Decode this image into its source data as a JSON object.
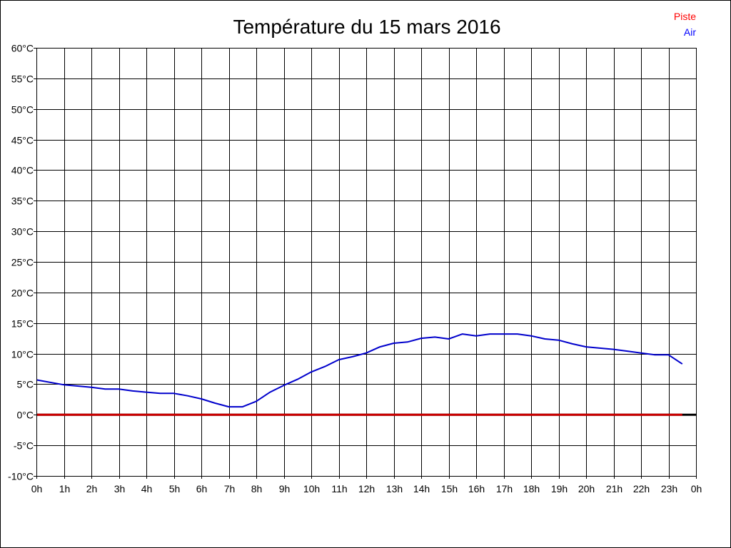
{
  "chart_data": {
    "type": "line",
    "title": "Température du 15 mars 2016",
    "legend": {
      "position": "top-right",
      "entries": [
        {
          "name": "Piste",
          "color": "#ff0000"
        },
        {
          "name": "Air",
          "color": "#0000ff"
        }
      ]
    },
    "x_unit": "h",
    "xlim": [
      0,
      24
    ],
    "x_tick_labels": [
      "0h",
      "1h",
      "2h",
      "3h",
      "4h",
      "5h",
      "6h",
      "7h",
      "8h",
      "9h",
      "10h",
      "11h",
      "12h",
      "13h",
      "14h",
      "15h",
      "16h",
      "17h",
      "18h",
      "19h",
      "20h",
      "21h",
      "22h",
      "23h",
      "0h"
    ],
    "ylim": [
      -10,
      60
    ],
    "y_tick_values": [
      60,
      55,
      50,
      45,
      40,
      35,
      30,
      25,
      20,
      15,
      10,
      5,
      0,
      -5,
      -10
    ],
    "y_tick_labels": [
      "60°C",
      "55°C",
      "50°C",
      "45°C",
      "40°C",
      "35°C",
      "30°C",
      "25°C",
      "20°C",
      "15°C",
      "10°C",
      "5°C",
      "0°C",
      "-5°C",
      "-10°C"
    ],
    "grid": true,
    "series": [
      {
        "name": "Piste",
        "color": "#cc0000",
        "x": [
          0,
          23.5
        ],
        "y": [
          0,
          0
        ]
      },
      {
        "name": "Air",
        "color": "#0000cc",
        "x": [
          0,
          1,
          2,
          2.5,
          3,
          3.5,
          4,
          4.5,
          5,
          5.5,
          6,
          6.5,
          7,
          7.5,
          8,
          8.5,
          9,
          9.5,
          10,
          10.5,
          11,
          11.5,
          12,
          12.5,
          13,
          13.5,
          14,
          14.5,
          15,
          15.5,
          16,
          16.5,
          17,
          17.5,
          18,
          18.5,
          19,
          19.5,
          20,
          20.5,
          21,
          21.5,
          22,
          22.5,
          23,
          23.5
        ],
        "y": [
          5.7,
          4.9,
          4.5,
          4.2,
          4.2,
          3.9,
          3.7,
          3.5,
          3.5,
          3.1,
          2.6,
          1.9,
          1.3,
          1.3,
          2.2,
          3.7,
          4.8,
          5.8,
          7.0,
          7.9,
          9.0,
          9.5,
          10.1,
          11.1,
          11.7,
          11.9,
          12.5,
          12.7,
          12.4,
          13.2,
          12.9,
          13.2,
          13.2,
          13.2,
          12.9,
          12.4,
          12.2,
          11.6,
          11.1,
          10.9,
          10.7,
          10.4,
          10.1,
          9.8,
          9.8,
          8.3
        ]
      }
    ]
  }
}
